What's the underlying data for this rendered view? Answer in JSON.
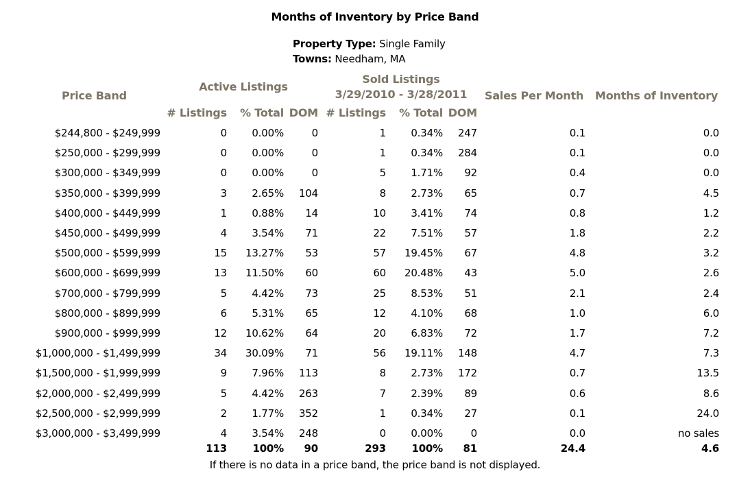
{
  "title": "Months of Inventory by Price Band",
  "property_type_label": "Property Type:",
  "property_type": "Single Family",
  "towns_label": "Towns:",
  "towns": "Needham, MA",
  "headers": {
    "price_band": "Price Band",
    "active_listings": "Active Listings",
    "sold_listings": "Sold Listings",
    "sold_range": "3/29/2010 - 3/28/2011",
    "sales_per_month": "Sales Per Month",
    "months_of_inventory": "Months of Inventory",
    "listings": "# Listings",
    "pct_total": "% Total",
    "dom": "DOM"
  },
  "rows": [
    {
      "band": "$244,800 - $249,999",
      "a_listings": "0",
      "a_pct": "0.00%",
      "a_dom": "0",
      "s_listings": "1",
      "s_pct": "0.34%",
      "s_dom": "247",
      "spm": "0.1",
      "moi": "0.0"
    },
    {
      "band": "$250,000 - $299,999",
      "a_listings": "0",
      "a_pct": "0.00%",
      "a_dom": "0",
      "s_listings": "1",
      "s_pct": "0.34%",
      "s_dom": "284",
      "spm": "0.1",
      "moi": "0.0"
    },
    {
      "band": "$300,000 - $349,999",
      "a_listings": "0",
      "a_pct": "0.00%",
      "a_dom": "0",
      "s_listings": "5",
      "s_pct": "1.71%",
      "s_dom": "92",
      "spm": "0.4",
      "moi": "0.0"
    },
    {
      "band": "$350,000 - $399,999",
      "a_listings": "3",
      "a_pct": "2.65%",
      "a_dom": "104",
      "s_listings": "8",
      "s_pct": "2.73%",
      "s_dom": "65",
      "spm": "0.7",
      "moi": "4.5"
    },
    {
      "band": "$400,000 - $449,999",
      "a_listings": "1",
      "a_pct": "0.88%",
      "a_dom": "14",
      "s_listings": "10",
      "s_pct": "3.41%",
      "s_dom": "74",
      "spm": "0.8",
      "moi": "1.2"
    },
    {
      "band": "$450,000 - $499,999",
      "a_listings": "4",
      "a_pct": "3.54%",
      "a_dom": "71",
      "s_listings": "22",
      "s_pct": "7.51%",
      "s_dom": "57",
      "spm": "1.8",
      "moi": "2.2"
    },
    {
      "band": "$500,000 - $599,999",
      "a_listings": "15",
      "a_pct": "13.27%",
      "a_dom": "53",
      "s_listings": "57",
      "s_pct": "19.45%",
      "s_dom": "67",
      "spm": "4.8",
      "moi": "3.2"
    },
    {
      "band": "$600,000 - $699,999",
      "a_listings": "13",
      "a_pct": "11.50%",
      "a_dom": "60",
      "s_listings": "60",
      "s_pct": "20.48%",
      "s_dom": "43",
      "spm": "5.0",
      "moi": "2.6"
    },
    {
      "band": "$700,000 - $799,999",
      "a_listings": "5",
      "a_pct": "4.42%",
      "a_dom": "73",
      "s_listings": "25",
      "s_pct": "8.53%",
      "s_dom": "51",
      "spm": "2.1",
      "moi": "2.4"
    },
    {
      "band": "$800,000 - $899,999",
      "a_listings": "6",
      "a_pct": "5.31%",
      "a_dom": "65",
      "s_listings": "12",
      "s_pct": "4.10%",
      "s_dom": "68",
      "spm": "1.0",
      "moi": "6.0"
    },
    {
      "band": "$900,000 - $999,999",
      "a_listings": "12",
      "a_pct": "10.62%",
      "a_dom": "64",
      "s_listings": "20",
      "s_pct": "6.83%",
      "s_dom": "72",
      "spm": "1.7",
      "moi": "7.2"
    },
    {
      "band": "$1,000,000 - $1,499,999",
      "a_listings": "34",
      "a_pct": "30.09%",
      "a_dom": "71",
      "s_listings": "56",
      "s_pct": "19.11%",
      "s_dom": "148",
      "spm": "4.7",
      "moi": "7.3"
    },
    {
      "band": "$1,500,000 - $1,999,999",
      "a_listings": "9",
      "a_pct": "7.96%",
      "a_dom": "113",
      "s_listings": "8",
      "s_pct": "2.73%",
      "s_dom": "172",
      "spm": "0.7",
      "moi": "13.5"
    },
    {
      "band": "$2,000,000 - $2,499,999",
      "a_listings": "5",
      "a_pct": "4.42%",
      "a_dom": "263",
      "s_listings": "7",
      "s_pct": "2.39%",
      "s_dom": "89",
      "spm": "0.6",
      "moi": "8.6"
    },
    {
      "band": "$2,500,000 - $2,999,999",
      "a_listings": "2",
      "a_pct": "1.77%",
      "a_dom": "352",
      "s_listings": "1",
      "s_pct": "0.34%",
      "s_dom": "27",
      "spm": "0.1",
      "moi": "24.0"
    },
    {
      "band": "$3,000,000 - $3,499,999",
      "a_listings": "4",
      "a_pct": "3.54%",
      "a_dom": "248",
      "s_listings": "0",
      "s_pct": "0.00%",
      "s_dom": "0",
      "spm": "0.0",
      "moi": "no sales"
    }
  ],
  "totals": {
    "a_listings": "113",
    "a_pct": "100%",
    "a_dom": "90",
    "s_listings": "293",
    "s_pct": "100%",
    "s_dom": "81",
    "spm": "24.4",
    "moi": "4.6"
  },
  "footnote": "If there is no data in a price band, the price band is not displayed."
}
